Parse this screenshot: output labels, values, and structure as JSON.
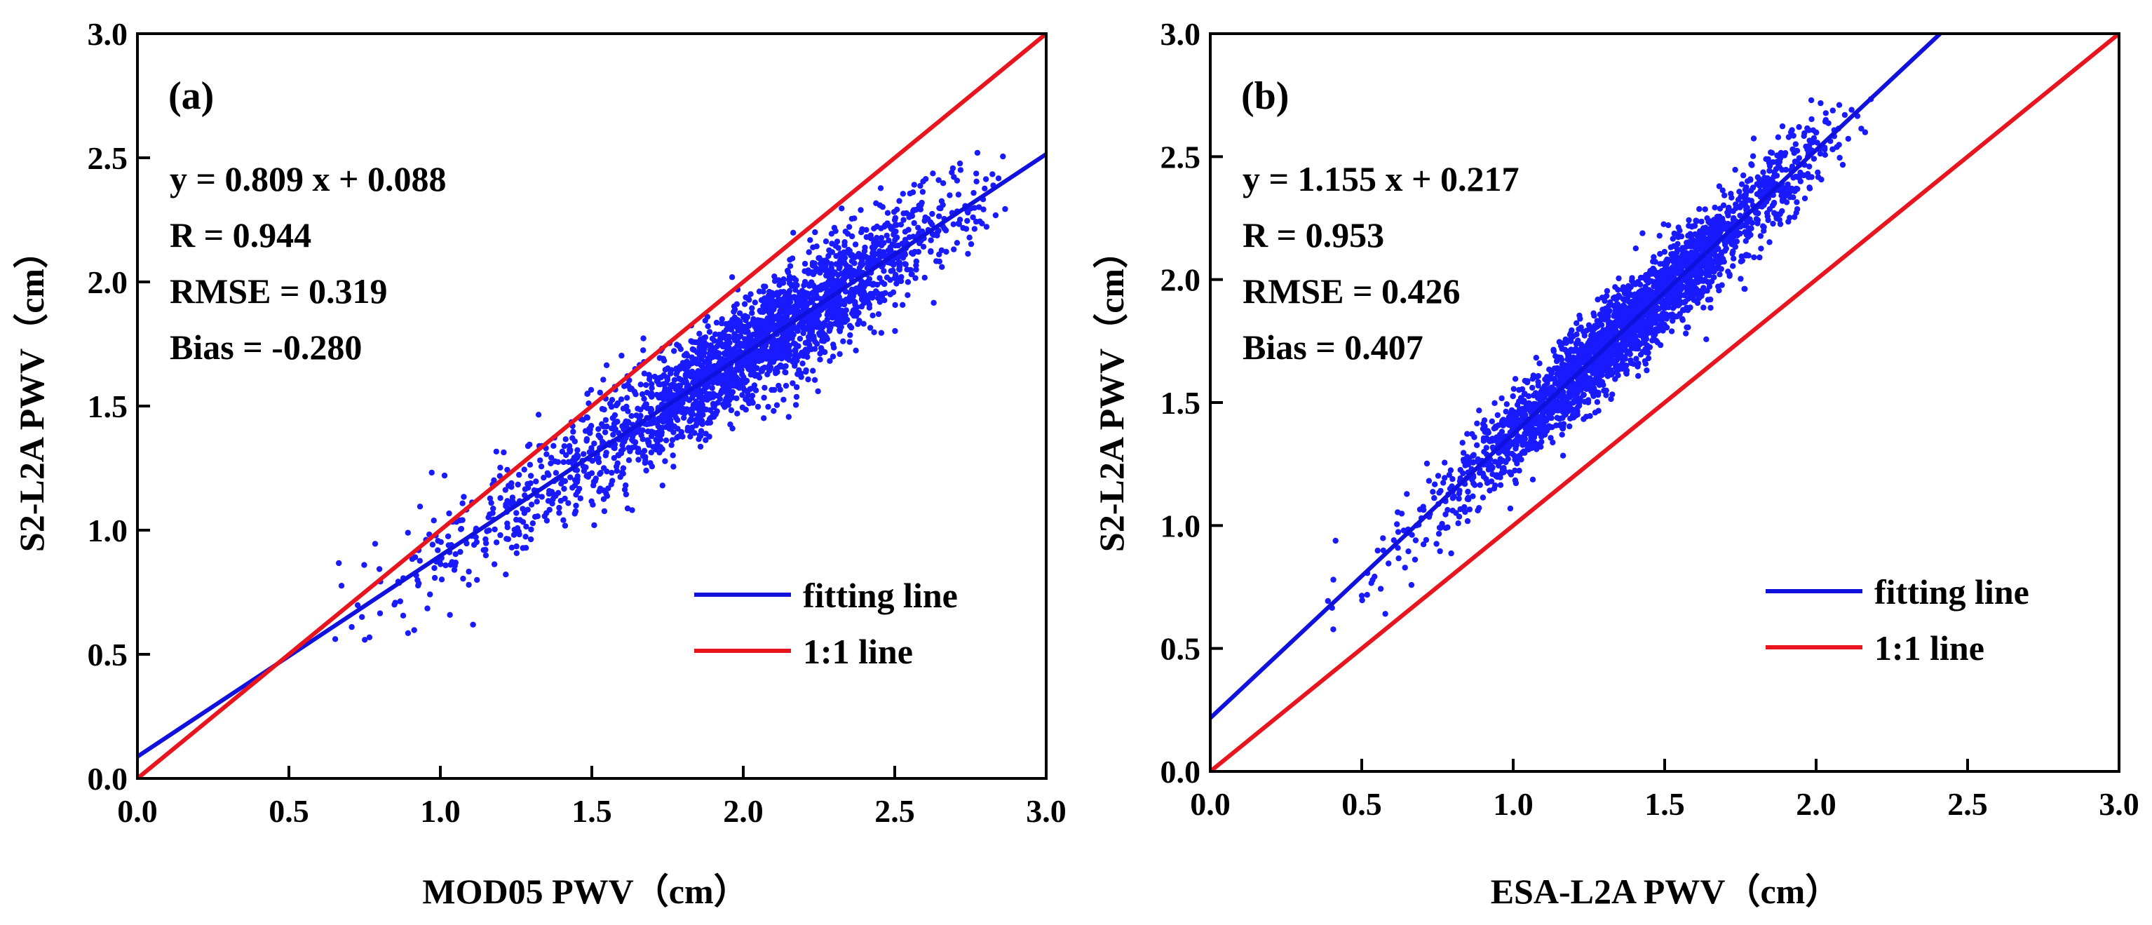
{
  "colors": {
    "scatter": "#1a1aff",
    "fit": "#1111dd",
    "oneone": "#e8141e",
    "axis": "#000000"
  },
  "chart_data": [
    {
      "type": "scatter",
      "panel_label": "(a)",
      "xlabel": "MOD05 PWV（cm）",
      "ylabel": "S2-L2A PWV（cm）",
      "xlim": [
        0,
        3
      ],
      "ylim": [
        0,
        3
      ],
      "ticks": [
        "0.0",
        "0.5",
        "1.0",
        "1.5",
        "2.0",
        "2.5",
        "3.0"
      ],
      "equation": "y = 0.809 x + 0.088",
      "r_text": "R = 0.944",
      "rmse_text": "RMSE = 0.319",
      "bias_text": "Bias = -0.280",
      "fit": {
        "slope": 0.809,
        "intercept": 0.088
      },
      "legend": {
        "fit_label": "fitting line",
        "oneone_label": "1:1 line",
        "position": "lower-right"
      },
      "cloud": {
        "n": 2600,
        "x_min": 0.5,
        "x_max": 2.9,
        "x_mode": 2.1,
        "noise_sd": 0.11
      }
    },
    {
      "type": "scatter",
      "panel_label": "(b)",
      "xlabel": "ESA-L2A PWV（cm）",
      "ylabel": "S2-L2A PWV（cm）",
      "xlim": [
        0,
        3
      ],
      "ylim": [
        0,
        3
      ],
      "ticks": [
        "0.0",
        "0.5",
        "1.0",
        "1.5",
        "2.0",
        "2.5",
        "3.0"
      ],
      "equation": "y = 1.155 x + 0.217",
      "r_text": "R = 0.953",
      "rmse_text": "RMSE = 0.426",
      "bias_text": "Bias = 0.407",
      "fit": {
        "slope": 1.155,
        "intercept": 0.217
      },
      "legend": {
        "fit_label": "fitting line",
        "oneone_label": "1:1 line",
        "position": "lower-right"
      },
      "cloud": {
        "n": 2600,
        "x_min": 0.3,
        "x_max": 2.2,
        "x_mode": 1.35,
        "noise_sd": 0.09
      }
    }
  ]
}
